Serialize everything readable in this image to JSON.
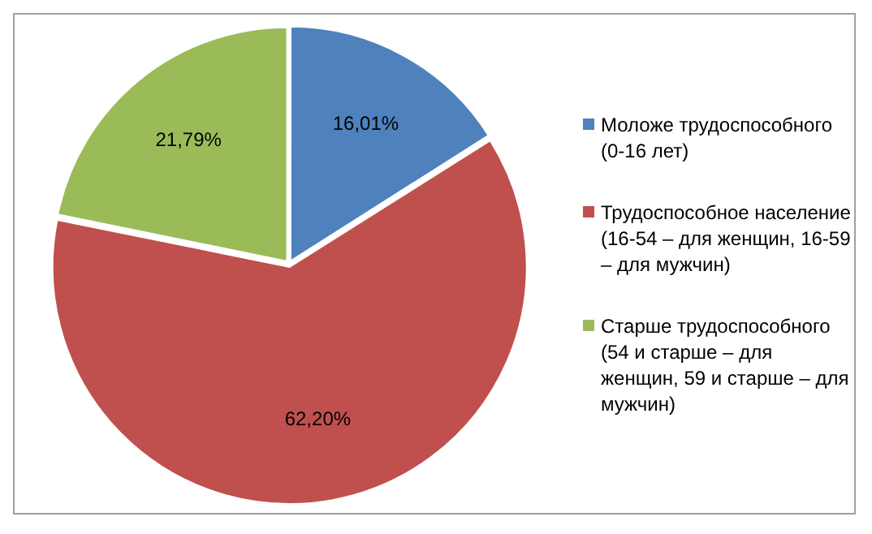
{
  "chart_data": {
    "type": "pie",
    "categories": [
      "Моложе трудоспособного (0-16 лет)",
      "Трудоспособное население (16-54 – для женщин, 16-59 – для мужчин)",
      "Старше трудоспособного (54 и старше – для женщин, 59 и старше – для мужчин)"
    ],
    "values": [
      16.01,
      62.2,
      21.79
    ],
    "value_labels": [
      "16,01%",
      "62,20%",
      "21,79%"
    ],
    "colors": [
      "#4f81bd",
      "#c0504d",
      "#9bbb59"
    ],
    "legend": "right"
  }
}
